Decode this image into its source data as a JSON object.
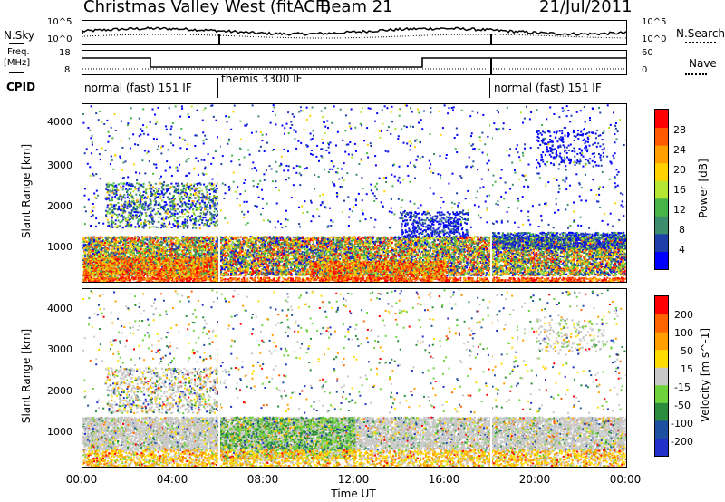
{
  "header": {
    "title": "Christmas Valley West (fitACF)",
    "beam": "Beam 21",
    "date": "21/Jul/2011"
  },
  "noise_panel": {
    "left_label": "N.Sky",
    "right_label": "N.Search",
    "left_ticks": [
      "10^5",
      "10^0"
    ],
    "right_ticks": [
      "10^5",
      "10^0"
    ]
  },
  "freq_panel": {
    "left_label_1": "Freq.",
    "left_label_2": "[MHz]",
    "right_label": "Nave",
    "left_ticks": [
      "18",
      "8"
    ],
    "right_ticks": [
      "60",
      "0"
    ]
  },
  "cpid": {
    "label": "CPID",
    "segments": [
      {
        "label": "normal (fast) 151 IF",
        "start_hour": 0,
        "end_hour": 6
      },
      {
        "label": "themis 3300 IF",
        "start_hour": 6,
        "end_hour": 18
      },
      {
        "label": "normal (fast) 151 IF",
        "start_hour": 18,
        "end_hour": 24
      }
    ]
  },
  "power_panel": {
    "ylabel": "Slant Range [km]",
    "yticks": [
      "4000",
      "3000",
      "2000",
      "1000"
    ],
    "colorbar_label": "Power [dB]",
    "colorbar_ticks": [
      "28",
      "24",
      "20",
      "16",
      "12",
      "8",
      "4"
    ],
    "colors": [
      "#0000ff",
      "#1e3fa8",
      "#3c8c6e",
      "#46b446",
      "#b4e632",
      "#ffd200",
      "#ffa000",
      "#ff5a00",
      "#ff0000"
    ]
  },
  "velocity_panel": {
    "ylabel": "Slant Range [km]",
    "yticks": [
      "4000",
      "3000",
      "2000",
      "1000"
    ],
    "colorbar_label": "Velocity [m s^-1]",
    "colorbar_ticks": [
      "200",
      "100",
      "50",
      "15",
      "-15",
      "-50",
      "-100",
      "-200"
    ],
    "colors": [
      "#2030c8",
      "#1e50a0",
      "#2a8c3c",
      "#6ed23c",
      "#c8c8c8",
      "#ffdc00",
      "#ffa000",
      "#ff6400",
      "#ff0000"
    ]
  },
  "xaxis": {
    "label": "Time UT",
    "ticks": [
      "00:00",
      "04:00",
      "08:00",
      "12:00",
      "16:00",
      "20:00",
      "00:00"
    ]
  },
  "chart_data": {
    "type": "heatmap",
    "x_range_hours": [
      0,
      24
    ],
    "y_range_km": [
      180,
      4500
    ],
    "colorbar_power_range_db": [
      0,
      32
    ],
    "colorbar_velocity_range": [
      -250,
      250
    ],
    "dominant_features": [
      {
        "panel": "power",
        "range_km": [
          300,
          1300
        ],
        "hours": [
          0,
          24
        ],
        "level_db": 20
      },
      {
        "panel": "power",
        "range_km": [
          1600,
          2600
        ],
        "hours": [
          0,
          6
        ],
        "level_db": 12
      },
      {
        "panel": "velocity",
        "range_km": [
          600,
          1400
        ],
        "hours": [
          0,
          24
        ],
        "level": 0
      }
    ]
  }
}
